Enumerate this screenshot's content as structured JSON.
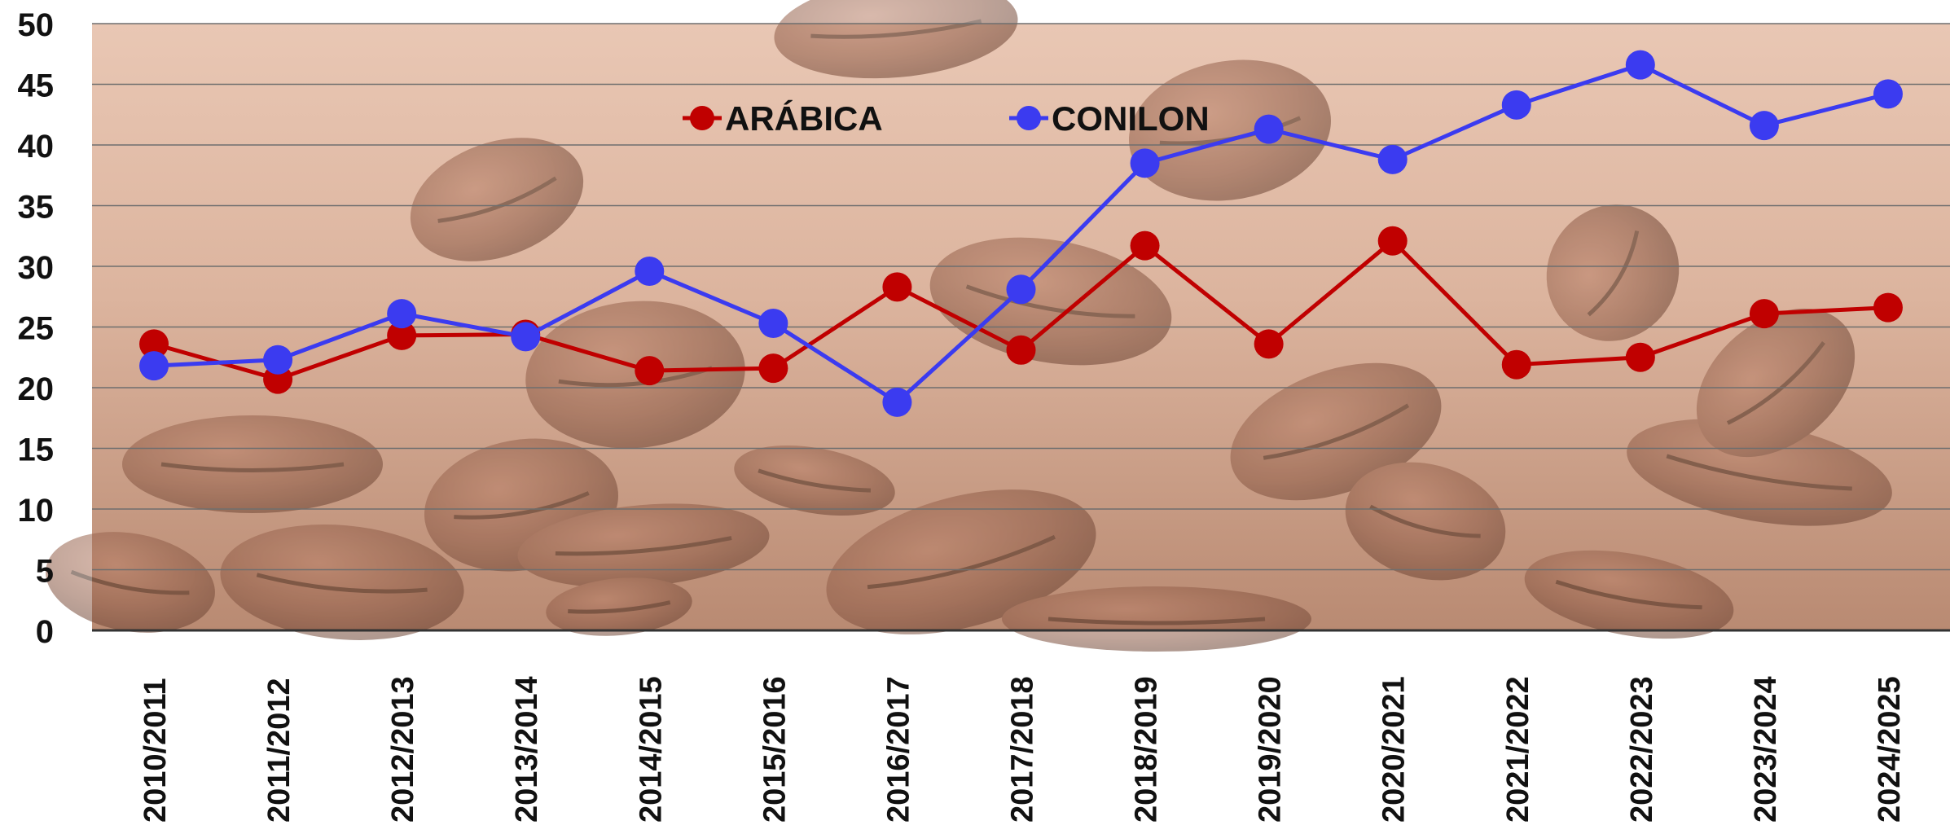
{
  "chart_data": {
    "type": "line",
    "title": "",
    "xlabel": "",
    "ylabel": "",
    "ylim": [
      0,
      50
    ],
    "yticks": [
      0,
      5,
      10,
      15,
      20,
      25,
      30,
      35,
      40,
      45,
      50
    ],
    "grid": true,
    "legend_position": "top-center",
    "background": "coffee-beans-photo",
    "categories": [
      "2010/2011",
      "2011/2012",
      "2012/2013",
      "2013/2014",
      "2014/2015",
      "2015/2016",
      "2016/2017",
      "2017/2018",
      "2018/2019",
      "2019/2020",
      "2020/2021",
      "2021/2022",
      "2022/2023",
      "2023/2024",
      "2024/2025"
    ],
    "series": [
      {
        "name": "ARÁBICA",
        "color": "#c00000",
        "values": [
          23.6,
          20.7,
          24.3,
          24.4,
          21.4,
          21.6,
          28.3,
          23.1,
          31.7,
          23.6,
          32.1,
          21.9,
          22.5,
          26.1,
          26.6
        ]
      },
      {
        "name": "CONILON",
        "color": "#3b3bf0",
        "values": [
          21.8,
          22.3,
          26.1,
          24.2,
          29.6,
          25.3,
          18.8,
          28.1,
          38.5,
          41.3,
          38.8,
          43.3,
          46.6,
          41.6,
          44.2
        ]
      }
    ]
  }
}
